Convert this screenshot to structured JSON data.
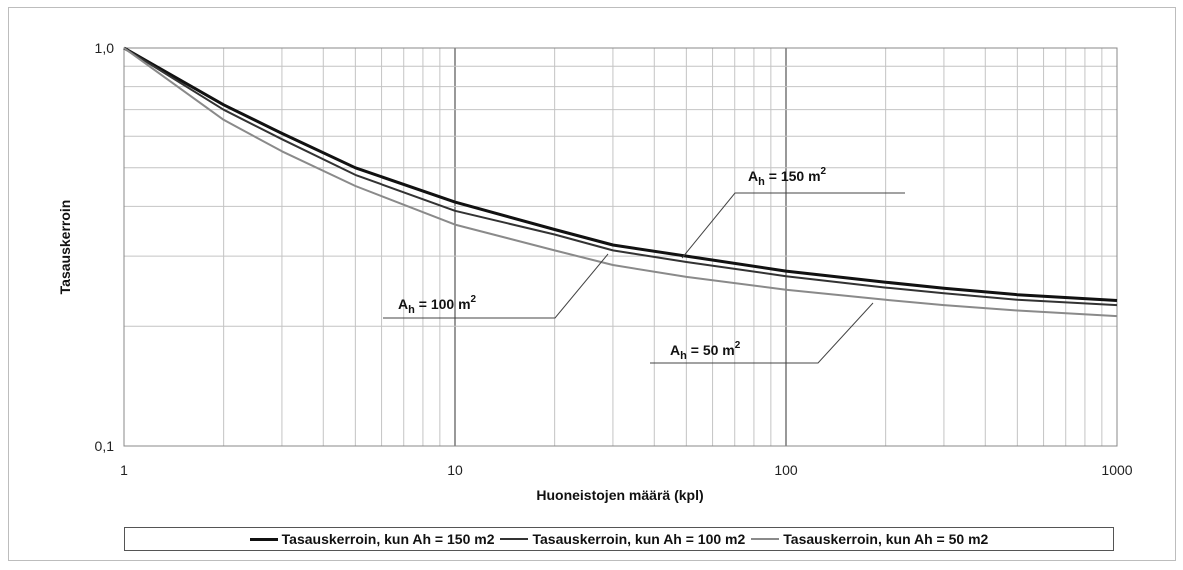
{
  "chart_data": {
    "type": "line",
    "title": "",
    "xlabel": "Huoneistojen määrä (kpl)",
    "ylabel": "Tasauskerroin",
    "x_scale": "log",
    "y_scale": "log",
    "xlim": [
      1,
      1000
    ],
    "ylim": [
      0.1,
      1.0
    ],
    "x_tick_labels": [
      "1",
      "10",
      "100",
      "1000"
    ],
    "y_tick_labels": [
      "0,1",
      "1,0"
    ],
    "grid": true,
    "legend_placement": "bottom",
    "x": [
      1,
      2,
      3,
      5,
      10,
      20,
      30,
      50,
      100,
      200,
      300,
      500,
      1000
    ],
    "series": [
      {
        "name": "Tasauskerroin, kun Ah = 150 m2",
        "color": "#111111",
        "values": [
          1.0,
          0.72,
          0.61,
          0.5,
          0.41,
          0.35,
          0.32,
          0.3,
          0.275,
          0.258,
          0.249,
          0.24,
          0.232
        ]
      },
      {
        "name": "Tasauskerroin, kun Ah = 100 m2",
        "color": "#333333",
        "values": [
          1.0,
          0.7,
          0.59,
          0.48,
          0.39,
          0.34,
          0.31,
          0.29,
          0.267,
          0.25,
          0.242,
          0.233,
          0.226
        ]
      },
      {
        "name": "Tasauskerroin, kun Ah = 50 m2",
        "color": "#8a8a8a",
        "values": [
          1.0,
          0.66,
          0.55,
          0.45,
          0.36,
          0.31,
          0.285,
          0.266,
          0.247,
          0.233,
          0.226,
          0.219,
          0.212
        ]
      }
    ],
    "annotations": [
      {
        "main": "A",
        "sub": "h",
        "rest": " = 150 m",
        "sup": "2"
      },
      {
        "main": "A",
        "sub": "h",
        "rest": " = 100 m",
        "sup": "2"
      },
      {
        "main": "A",
        "sub": "h",
        "rest": " = 50 m",
        "sup": "2"
      }
    ]
  }
}
